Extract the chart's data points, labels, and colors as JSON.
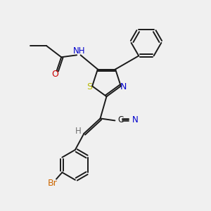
{
  "bg_color": "#f0f0f0",
  "bond_color": "#1a1a1a",
  "s_color": "#b8b800",
  "n_color": "#0000cc",
  "o_color": "#cc0000",
  "br_color": "#cc6600",
  "h_color": "#707070",
  "font_size": 8.5,
  "lw": 1.4,
  "xlim": [
    0,
    10
  ],
  "ylim": [
    0,
    10
  ]
}
